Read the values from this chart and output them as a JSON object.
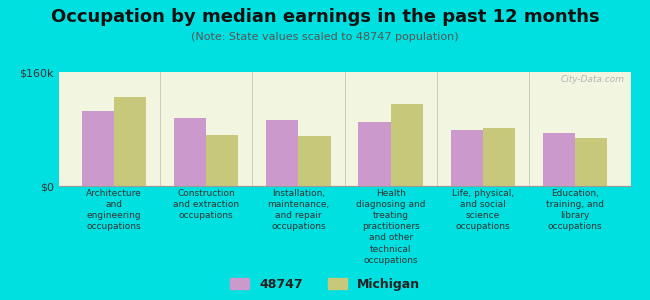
{
  "title": "Occupation by median earnings in the past 12 months",
  "subtitle": "(Note: State values scaled to 48747 population)",
  "background_color": "#00e0e0",
  "plot_bg_color": "#f2f5e0",
  "ylim": [
    0,
    160000
  ],
  "ytick_labels": [
    "$0",
    "$160k"
  ],
  "categories": [
    "Architecture\nand\nengineering\noccupations",
    "Construction\nand extraction\noccupations",
    "Installation,\nmaintenance,\nand repair\noccupations",
    "Health\ndiagnosing and\ntreating\npractitioners\nand other\ntechnical\noccupations",
    "Life, physical,\nand social\nscience\noccupations",
    "Education,\ntraining, and\nlibrary\noccupations"
  ],
  "values_48747": [
    105000,
    95000,
    93000,
    90000,
    78000,
    75000
  ],
  "values_michigan": [
    125000,
    72000,
    70000,
    115000,
    82000,
    68000
  ],
  "color_48747": "#cc99cc",
  "color_michigan": "#c8c87a",
  "legend_labels": [
    "48747",
    "Michigan"
  ],
  "bar_width": 0.35,
  "watermark": "City-Data.com",
  "title_fontsize": 13,
  "subtitle_fontsize": 8,
  "label_fontsize": 6.5,
  "tick_fontsize": 8
}
